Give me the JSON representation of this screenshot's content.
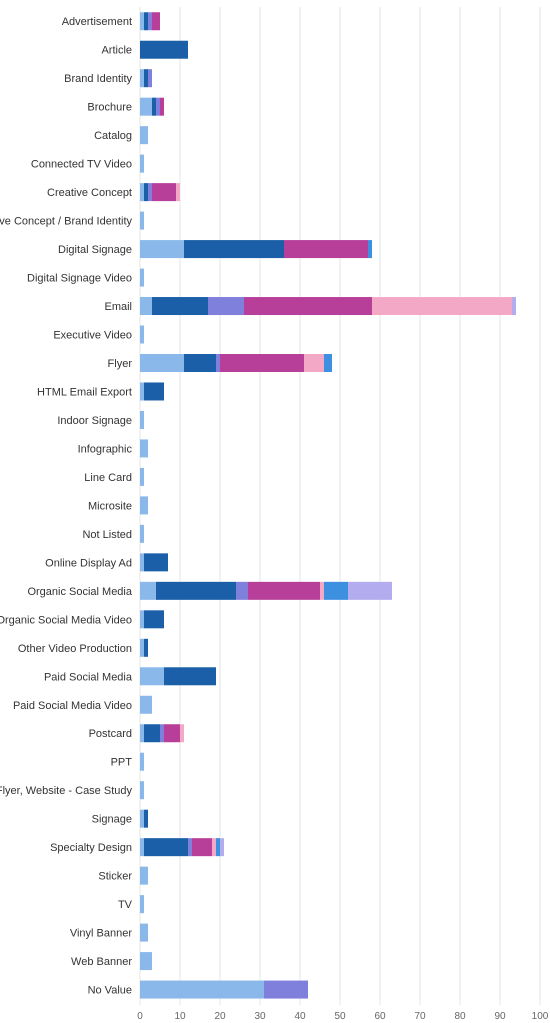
{
  "chart_data": {
    "type": "bar",
    "orientation": "horizontal",
    "stacked": true,
    "grid": true,
    "xlim": [
      0,
      100
    ],
    "xticks": [
      0,
      10,
      20,
      30,
      40,
      50,
      60,
      70,
      80,
      90,
      100
    ],
    "categories": [
      "Advertisement",
      "Article",
      "Brand Identity",
      "Brochure",
      "Catalog",
      "Connected TV Video",
      "Creative Concept",
      "Creative Concept / Brand Identity",
      "Digital Signage",
      "Digital Signage Video",
      "Email",
      "Executive Video",
      "Flyer",
      "HTML Email Export",
      "Indoor Signage",
      "Infographic",
      "Line Card",
      "Microsite",
      "Not Listed",
      "Online Display Ad",
      "Organic Social Media",
      "Organic Social Media Video",
      "Other Video Production",
      "Paid Social Media",
      "Paid Social Media Video",
      "Postcard",
      "PPT",
      "Print - Flyer, Website - Case Study",
      "Signage",
      "Specialty Design",
      "Sticker",
      "TV",
      "Vinyl Banner",
      "Web Banner",
      "No Value"
    ],
    "series": [
      {
        "color": "#8ab8ea",
        "values": [
          1,
          0,
          1,
          3,
          2,
          1,
          1,
          1,
          11,
          1,
          3,
          1,
          11,
          1,
          1,
          2,
          1,
          2,
          1,
          1,
          4,
          1,
          1,
          6,
          3,
          1,
          1,
          1,
          1,
          1,
          2,
          1,
          2,
          3,
          31
        ]
      },
      {
        "color": "#1b5fa8",
        "values": [
          1,
          12,
          1,
          1,
          0,
          0,
          1,
          0,
          25,
          0,
          14,
          0,
          8,
          5,
          0,
          0,
          0,
          0,
          0,
          6,
          20,
          5,
          1,
          13,
          0,
          4,
          0,
          0,
          1,
          11,
          0,
          0,
          0,
          0,
          0
        ]
      },
      {
        "color": "#7f7fdc",
        "values": [
          1,
          0,
          1,
          1,
          0,
          0,
          1,
          0,
          0,
          0,
          9,
          0,
          1,
          0,
          0,
          0,
          0,
          0,
          0,
          0,
          3,
          0,
          0,
          0,
          0,
          1,
          0,
          0,
          0,
          1,
          0,
          0,
          0,
          0,
          11
        ]
      },
      {
        "color": "#b73f9a",
        "values": [
          2,
          0,
          0,
          1,
          0,
          0,
          6,
          0,
          21,
          0,
          32,
          0,
          21,
          0,
          0,
          0,
          0,
          0,
          0,
          0,
          18,
          0,
          0,
          0,
          0,
          4,
          0,
          0,
          0,
          5,
          0,
          0,
          0,
          0,
          0
        ]
      },
      {
        "color": "#f3a9c6",
        "values": [
          0,
          0,
          0,
          0,
          0,
          0,
          1,
          0,
          0,
          0,
          35,
          0,
          5,
          0,
          0,
          0,
          0,
          0,
          0,
          0,
          1,
          0,
          0,
          0,
          0,
          1,
          0,
          0,
          0,
          1,
          0,
          0,
          0,
          0,
          0
        ]
      },
      {
        "color": "#3d8fe0",
        "values": [
          0,
          0,
          0,
          0,
          0,
          0,
          0,
          0,
          1,
          0,
          0,
          0,
          2,
          0,
          0,
          0,
          0,
          0,
          0,
          0,
          6,
          0,
          0,
          0,
          0,
          0,
          0,
          0,
          0,
          1,
          0,
          0,
          0,
          0,
          0
        ]
      },
      {
        "color": "#b3adef",
        "values": [
          0,
          0,
          0,
          0,
          0,
          0,
          0,
          0,
          0,
          0,
          1,
          0,
          0,
          0,
          0,
          0,
          0,
          0,
          0,
          0,
          11,
          0,
          0,
          0,
          0,
          0,
          0,
          0,
          0,
          1,
          0,
          0,
          0,
          0,
          0
        ]
      }
    ]
  }
}
